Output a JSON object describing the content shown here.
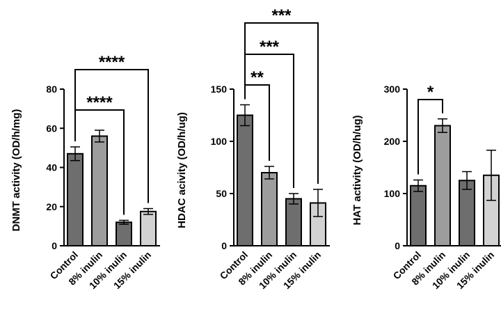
{
  "chart_data": [
    {
      "type": "bar",
      "categories": [
        "Control",
        "8% inulin",
        "10% inulin",
        "15% inulin"
      ],
      "values": [
        47,
        56,
        12,
        17.5
      ],
      "errors": [
        3.5,
        3,
        1,
        1.5
      ],
      "ylabel": "DNMT activity (OD/h/mg)",
      "ylim": [
        0,
        80
      ],
      "yticks": [
        0,
        20,
        40,
        60,
        80
      ],
      "bar_colors": [
        "#6e6e6e",
        "#9d9d9d",
        "#6e6e6e",
        "#d2d2d2"
      ],
      "significance": [
        {
          "from": 0,
          "to": 2,
          "label": "****"
        },
        {
          "from": 0,
          "to": 3,
          "label": "****"
        }
      ]
    },
    {
      "type": "bar",
      "categories": [
        "Control",
        "8% inulin",
        "10% inulin",
        "15% inulin"
      ],
      "values": [
        125,
        70,
        45,
        41
      ],
      "errors": [
        10,
        6,
        5,
        13
      ],
      "ylabel": "HDAC acivity (OD/h/ug)",
      "ylim": [
        0,
        150
      ],
      "yticks": [
        0,
        50,
        100,
        150
      ],
      "bar_colors": [
        "#6e6e6e",
        "#9d9d9d",
        "#6e6e6e",
        "#d2d2d2"
      ],
      "significance": [
        {
          "from": 0,
          "to": 1,
          "label": "**"
        },
        {
          "from": 0,
          "to": 2,
          "label": "***"
        },
        {
          "from": 0,
          "to": 3,
          "label": "***"
        }
      ]
    },
    {
      "type": "bar",
      "categories": [
        "Control",
        "8% inulin",
        "10% inulin",
        "15% inulin"
      ],
      "values": [
        115,
        230,
        125,
        135
      ],
      "errors": [
        11,
        13,
        17,
        48
      ],
      "ylabel": "HAT activity (OD/h/ug)",
      "ylim": [
        0,
        300
      ],
      "yticks": [
        0,
        100,
        200,
        300
      ],
      "bar_colors": [
        "#6e6e6e",
        "#9d9d9d",
        "#6e6e6e",
        "#d2d2d2"
      ],
      "significance": [
        {
          "from": 0,
          "to": 1,
          "label": "*"
        }
      ]
    }
  ]
}
